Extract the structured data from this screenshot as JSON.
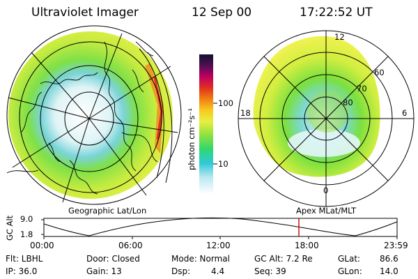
{
  "header": {
    "title": "Ultraviolet Imager",
    "date": "12 Sep 00",
    "time": "17:22:52 UT"
  },
  "colorbar": {
    "unit_label": "photon cm⁻²s⁻¹",
    "ticks": [
      "100",
      "10"
    ]
  },
  "left_panel": {
    "label": "Geographic Lat/Lon"
  },
  "right_panel": {
    "label": "Apex  MLat/MLT",
    "lat_labels": [
      "60",
      "70",
      "80"
    ],
    "mlt_labels": {
      "top": "12",
      "left": "18",
      "right": "6",
      "bottom": "0"
    }
  },
  "altitude_track": {
    "ylabel": "GC Alt",
    "y_ticks": [
      "9.0",
      "1.8"
    ],
    "x_ticks": [
      "00:00",
      "06:00",
      "12:00",
      "18:00",
      "23:59"
    ],
    "marker_time": "17:22:52",
    "marker_color": "#cc0000"
  },
  "info_row1": {
    "flt": "Flt: LBHL",
    "door": "Door: Closed",
    "mode": "Mode: Normal",
    "gcalt": "GC Alt: 7.2 Re",
    "glat_label": "GLat:",
    "glat_value": "86.6"
  },
  "info_row2": {
    "ip": "IP: 36.0",
    "gain": "Gain: 13",
    "dsp_label": "Dsp:",
    "dsp_value": "4.4",
    "seq": "Seq: 39",
    "glon_label": "GLon:",
    "glon_value": "14.0"
  }
}
